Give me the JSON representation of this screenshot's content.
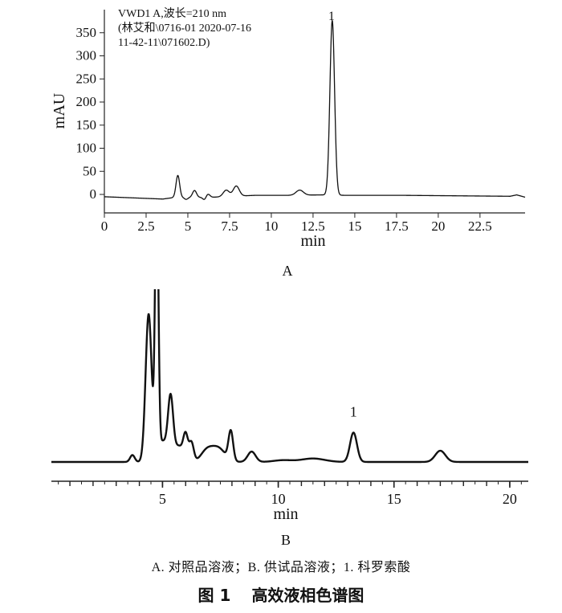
{
  "chart_data": [
    {
      "panel_label": "A",
      "type": "line",
      "annotation_lines": [
        "VWD1 A,波长=210 nm",
        "(林艾和\\0716-01 2020-07-16",
        "11-42-11\\071602.D)"
      ],
      "xlabel": "min",
      "ylabel": "mAU",
      "xlim": [
        0,
        25.2
      ],
      "ylim": [
        -40,
        400
      ],
      "x_ticks": [
        0,
        2.5,
        5,
        7.5,
        10,
        12.5,
        15,
        17.5,
        20,
        22.5
      ],
      "x_tick_labels": [
        "0",
        "2.5",
        "5",
        "7.5",
        "10",
        "12.5",
        "15",
        "17.5",
        "20",
        "22.5"
      ],
      "y_ticks": [
        0,
        50,
        100,
        150,
        200,
        250,
        300,
        350
      ],
      "y_tick_labels": [
        "0",
        "50",
        "100",
        "150",
        "200",
        "250",
        "300",
        "350"
      ],
      "baseline": [
        [
          0,
          -5
        ],
        [
          3.5,
          -10
        ],
        [
          4.1,
          -7
        ],
        [
          6.5,
          -6
        ],
        [
          9,
          -2
        ],
        [
          11,
          -2
        ],
        [
          13,
          -1
        ],
        [
          14.5,
          -2
        ],
        [
          18,
          -2
        ],
        [
          24.3,
          -4
        ],
        [
          24.7,
          -1
        ],
        [
          25.2,
          -6
        ]
      ],
      "peaks": [
        {
          "rt": 4.4,
          "height": 48,
          "width": 0.11
        },
        {
          "rt": 5.4,
          "height": 15,
          "width": 0.12
        },
        {
          "rt": 6.2,
          "height": 7,
          "width": 0.12
        },
        {
          "rt": 7.3,
          "height": 14,
          "width": 0.18
        },
        {
          "rt": 7.9,
          "height": 22,
          "width": 0.18
        },
        {
          "rt": 11.7,
          "height": 11,
          "width": 0.22
        },
        {
          "rt": 13.65,
          "height": 378,
          "width": 0.14
        }
      ],
      "dips": [
        {
          "rt": 4.9,
          "depth": -4,
          "width": 0.1
        },
        {
          "rt": 6.0,
          "depth": -6,
          "width": 0.1
        }
      ],
      "peak_label": {
        "text": "1",
        "x": 13.65,
        "y": 400
      }
    },
    {
      "panel_label": "B",
      "type": "line",
      "xlabel": "min",
      "ylabel": "",
      "xlim": [
        0.2,
        20.8
      ],
      "ylim": [
        -5,
        100
      ],
      "x_ticks": [
        5,
        10,
        15,
        20
      ],
      "x_tick_labels": [
        "5",
        "10",
        "15",
        "20"
      ],
      "minor_tick_step": 0.5,
      "baseline_value": 0,
      "peaks": [
        {
          "rt": 3.7,
          "height": 4,
          "width": 0.1
        },
        {
          "rt": 4.4,
          "height": 85,
          "width": 0.13
        },
        {
          "rt": 4.75,
          "height": 160,
          "width": 0.07
        },
        {
          "rt": 5.0,
          "height": 12,
          "width": 0.25
        },
        {
          "rt": 5.35,
          "height": 33,
          "width": 0.11
        },
        {
          "rt": 5.7,
          "height": 9,
          "width": 0.2
        },
        {
          "rt": 6.0,
          "height": 14,
          "width": 0.1
        },
        {
          "rt": 6.25,
          "height": 11,
          "width": 0.1
        },
        {
          "rt": 6.9,
          "height": 6,
          "width": 0.25
        },
        {
          "rt": 7.4,
          "height": 8,
          "width": 0.3
        },
        {
          "rt": 7.95,
          "height": 17,
          "width": 0.1
        },
        {
          "rt": 8.85,
          "height": 6,
          "width": 0.17
        },
        {
          "rt": 10.2,
          "height": 1,
          "width": 0.4
        },
        {
          "rt": 11.5,
          "height": 2,
          "width": 0.5
        },
        {
          "rt": 13.25,
          "height": 17,
          "width": 0.15
        },
        {
          "rt": 17.0,
          "height": 6.5,
          "width": 0.22
        }
      ],
      "peak_label": {
        "text": "1",
        "x": 13.25,
        "y": 29
      }
    }
  ],
  "captions": {
    "legend": "A. 对照品溶液；B. 供试品溶液；1. 科罗索酸",
    "figure_number": "图 1",
    "figure_title": "高效液相色谱图"
  }
}
